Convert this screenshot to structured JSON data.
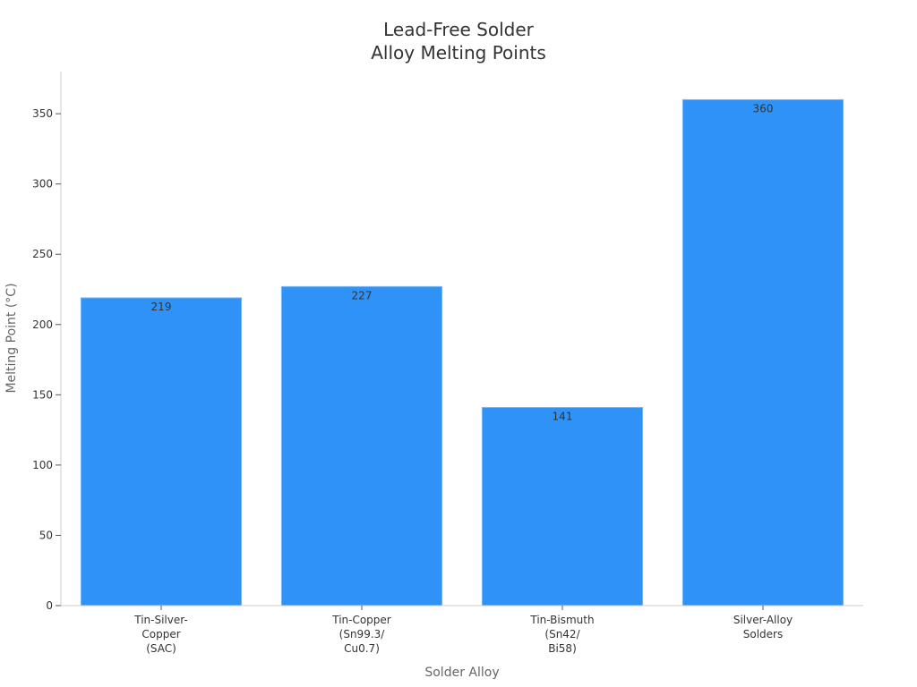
{
  "chart_data": {
    "type": "bar",
    "title_lines": [
      "Lead-Free Solder",
      "Alloy Melting Points"
    ],
    "xlabel": "Solder Alloy",
    "ylabel": "Melting Point (°C)",
    "categories": [
      [
        "Tin-Silver-",
        "Copper",
        "(SAC)"
      ],
      [
        "Tin-Copper",
        "(Sn99.3/",
        "Cu0.7)"
      ],
      [
        "Tin-Bismuth",
        "(Sn42/",
        "Bi58)"
      ],
      [
        "Silver-Alloy",
        "Solders"
      ]
    ],
    "values": [
      219,
      227,
      141,
      360
    ],
    "ylim": [
      0,
      380
    ],
    "yticks": [
      0,
      50,
      100,
      150,
      200,
      250,
      300,
      350
    ],
    "grid": false,
    "legend": "none",
    "colors": {
      "bar": "#2f92f7"
    }
  }
}
